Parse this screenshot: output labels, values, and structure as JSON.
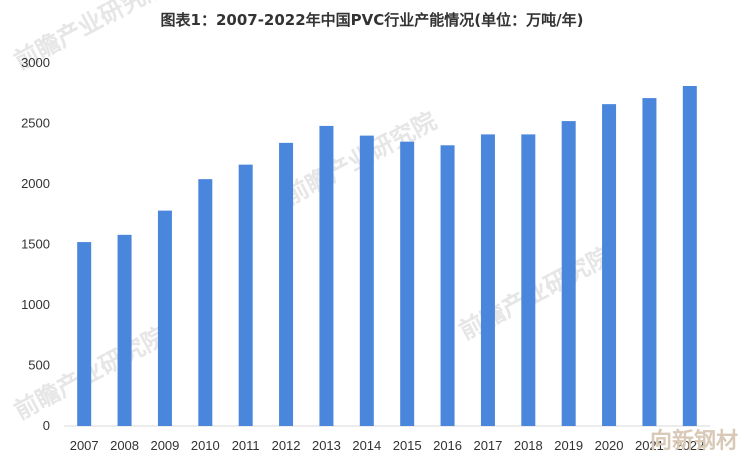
{
  "chart_data": {
    "type": "bar",
    "title": "图表1：2007-2022年中国PVC行业产能情况(单位：万吨/年)",
    "xlabel": "",
    "ylabel": "",
    "categories": [
      "2007",
      "2008",
      "2009",
      "2010",
      "2011",
      "2012",
      "2013",
      "2014",
      "2015",
      "2016",
      "2017",
      "2018",
      "2019",
      "2020",
      "2021",
      "2022"
    ],
    "values": [
      1520,
      1580,
      1780,
      2040,
      2160,
      2340,
      2480,
      2400,
      2350,
      2320,
      2410,
      2410,
      2520,
      2660,
      2710,
      2810
    ],
    "yticks": [
      "0",
      "500",
      "1000",
      "1500",
      "2000",
      "2500",
      "3000"
    ],
    "ylim": [
      0,
      3000
    ],
    "grid": false,
    "legend": "none",
    "bar_color": "#4a86dc"
  },
  "watermark": "前瞻产业研究院",
  "corner_mark": "向新钢材"
}
